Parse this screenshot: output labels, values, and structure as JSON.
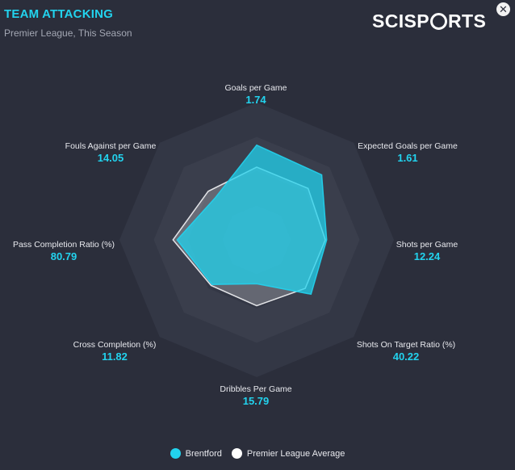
{
  "header": {
    "title": "TEAM ATTACKING",
    "subtitle": "Premier League, This Season",
    "brand": "SCISPORTS",
    "close_icon": "close-icon"
  },
  "colors": {
    "team": "#22d3ee",
    "average": "#e5e7eb",
    "background": "#2b2e3b"
  },
  "chart_data": {
    "type": "radar",
    "axes": [
      {
        "name": "Goals per Game",
        "value": "1.74"
      },
      {
        "name": "Expected Goals per Game",
        "value": "1.61"
      },
      {
        "name": "Shots per Game",
        "value": "12.24"
      },
      {
        "name": "Shots On Target Ratio (%)",
        "value": "40.22"
      },
      {
        "name": "Dribbles Per Game",
        "value": "15.79"
      },
      {
        "name": "Cross Completion (%)",
        "value": "11.82"
      },
      {
        "name": "Pass Completion Ratio (%)",
        "value": "80.79"
      },
      {
        "name": "Fouls Against per Game",
        "value": "14.05"
      }
    ],
    "series": [
      {
        "name": "Brentford",
        "normalized": [
          0.69,
          0.67,
          0.51,
          0.56,
          0.32,
          0.46,
          0.58,
          0.43
        ]
      },
      {
        "name": "Premier League Average",
        "normalized": [
          0.53,
          0.53,
          0.5,
          0.5,
          0.48,
          0.47,
          0.61,
          0.5
        ]
      }
    ],
    "rings": 4,
    "legend_position": "bottom"
  }
}
